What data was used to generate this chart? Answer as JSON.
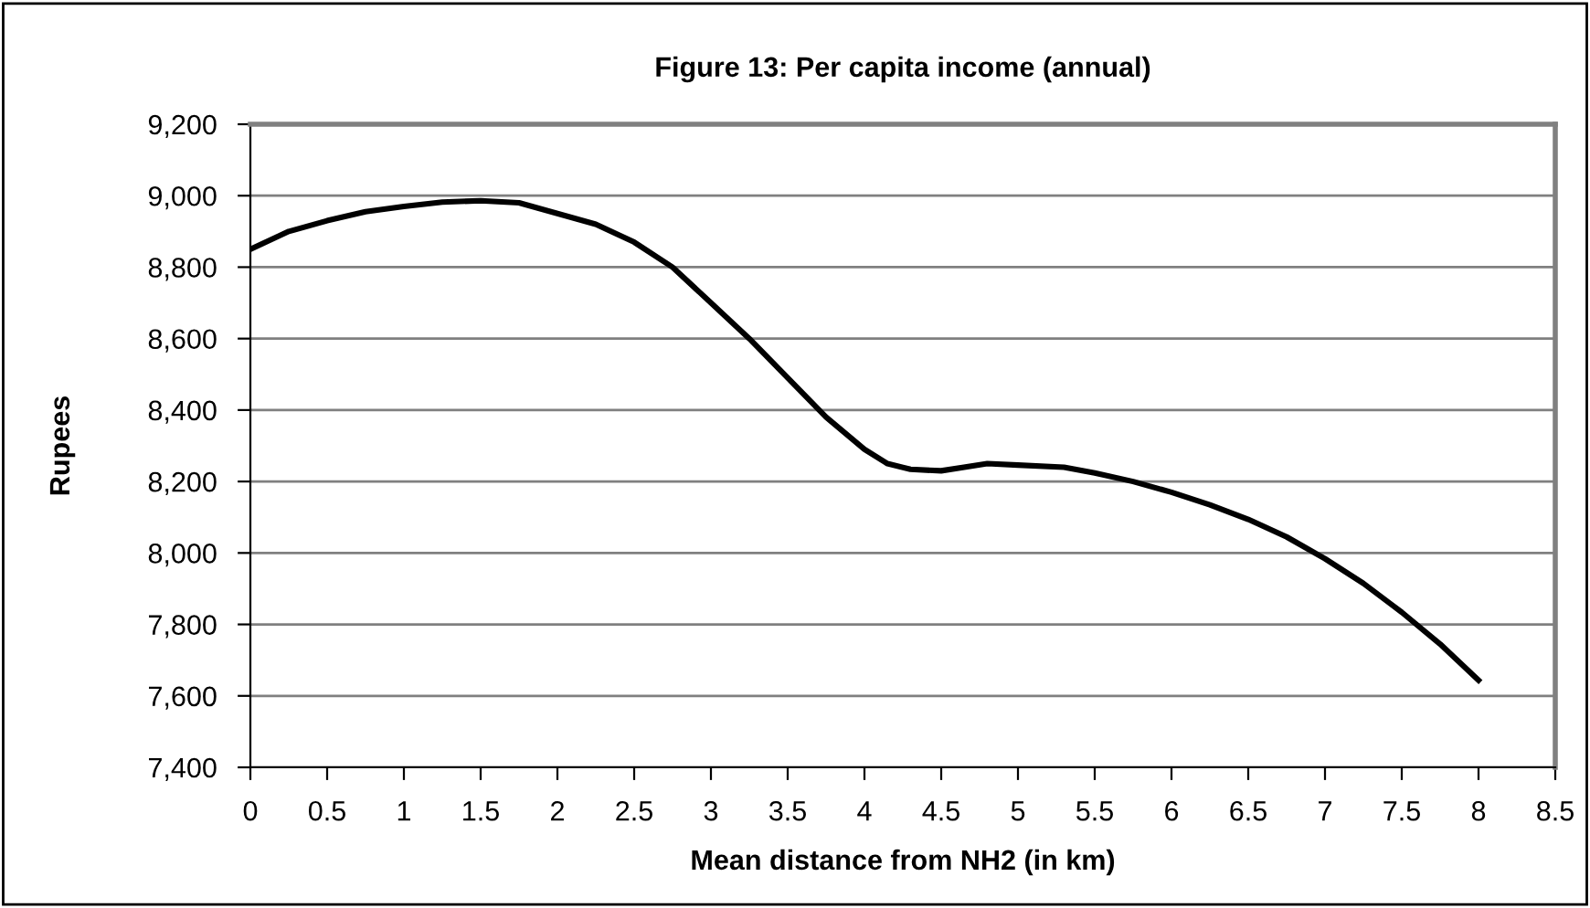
{
  "chart_data": {
    "type": "line",
    "title": "Figure 13: Per capita income (annual)",
    "xlabel": "Mean distance from NH2 (in km)",
    "ylabel": "Rupees",
    "series": [
      {
        "color": "#000000",
        "x": [
          0,
          0.25,
          0.5,
          0.75,
          1,
          1.25,
          1.5,
          1.75,
          2,
          2.25,
          2.5,
          2.75,
          3,
          3.25,
          3.5,
          3.75,
          4,
          4.15,
          4.3,
          4.5,
          4.8,
          5,
          5.3,
          5.5,
          5.75,
          6,
          6.25,
          6.5,
          6.75,
          7,
          7.25,
          7.5,
          7.75,
          8
        ],
        "values": [
          8850,
          8900,
          8930,
          8955,
          8970,
          8982,
          8986,
          8980,
          8950,
          8920,
          8870,
          8800,
          8700,
          8600,
          8490,
          8380,
          8290,
          8250,
          8234,
          8230,
          8250,
          8246,
          8240,
          8224,
          8200,
          8170,
          8135,
          8094,
          8045,
          7984,
          7915,
          7834,
          7745,
          7644
        ]
      }
    ],
    "xlim": [
      0,
      8.5
    ],
    "xticks": [
      0,
      0.5,
      1,
      1.5,
      2,
      2.5,
      3,
      3.5,
      4,
      4.5,
      5,
      5.5,
      6,
      6.5,
      7,
      7.5,
      8,
      8.5
    ],
    "ylim": [
      7400,
      9200
    ],
    "yticks": [
      {
        "value": 7400,
        "label": "7,400"
      },
      {
        "value": 7600,
        "label": "7,600"
      },
      {
        "value": 7800,
        "label": "7,800"
      },
      {
        "value": 8000,
        "label": "8,000"
      },
      {
        "value": 8200,
        "label": "8,200"
      },
      {
        "value": 8400,
        "label": "8,400"
      },
      {
        "value": 8600,
        "label": "8,600"
      },
      {
        "value": 8800,
        "label": "8,800"
      },
      {
        "value": 9000,
        "label": "9,000"
      },
      {
        "value": 9200,
        "label": "9,200"
      }
    ],
    "grid": "y",
    "legend": false,
    "marker": "none",
    "line_style": "solid"
  }
}
